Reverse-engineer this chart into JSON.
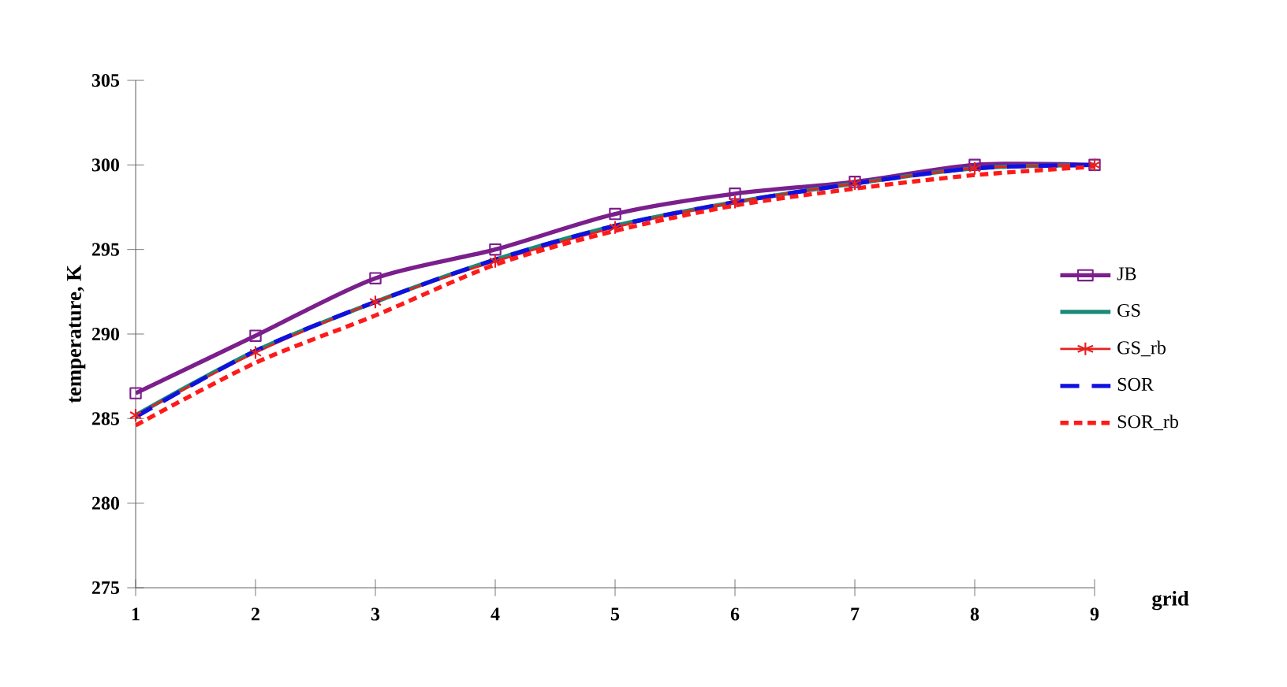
{
  "chart_data": {
    "type": "line",
    "xlabel": "grid",
    "ylabel": "temperature, K",
    "x": [
      1,
      2,
      3,
      4,
      5,
      6,
      7,
      8,
      9
    ],
    "xlim": [
      1,
      9
    ],
    "xticks": [
      1,
      2,
      3,
      4,
      5,
      6,
      7,
      8,
      9
    ],
    "ylim": [
      275,
      305
    ],
    "yticks": [
      275,
      280,
      285,
      290,
      295,
      300,
      305
    ],
    "grid": false,
    "legend": "right",
    "series": [
      {
        "name": "JB",
        "color": "#7b1f8c",
        "marker": "square",
        "line_style": "solid",
        "values": [
          286.5,
          289.9,
          293.3,
          295.0,
          297.1,
          298.3,
          299.0,
          300.0,
          300.0
        ]
      },
      {
        "name": "GS",
        "color": "#1a8a7a",
        "marker": "none",
        "line_style": "solid",
        "values": [
          285.2,
          289.0,
          291.9,
          294.4,
          296.4,
          297.8,
          298.9,
          299.8,
          300.0
        ]
      },
      {
        "name": "GS_rb",
        "color": "#e8201e",
        "marker": "cross",
        "line_style": "solid",
        "values": [
          285.2,
          288.9,
          291.9,
          294.3,
          296.3,
          297.8,
          298.9,
          299.8,
          300.0
        ]
      },
      {
        "name": "SOR",
        "color": "#1010e0",
        "marker": "none",
        "line_style": "dashed",
        "values": [
          285.1,
          289.0,
          291.9,
          294.4,
          296.4,
          297.8,
          298.9,
          299.8,
          300.0
        ]
      },
      {
        "name": "SOR_rb",
        "color": "#ff1a1a",
        "marker": "none",
        "line_style": "dotted",
        "values": [
          284.6,
          288.3,
          291.1,
          294.1,
          296.1,
          297.6,
          298.6,
          299.4,
          299.9
        ]
      }
    ]
  }
}
